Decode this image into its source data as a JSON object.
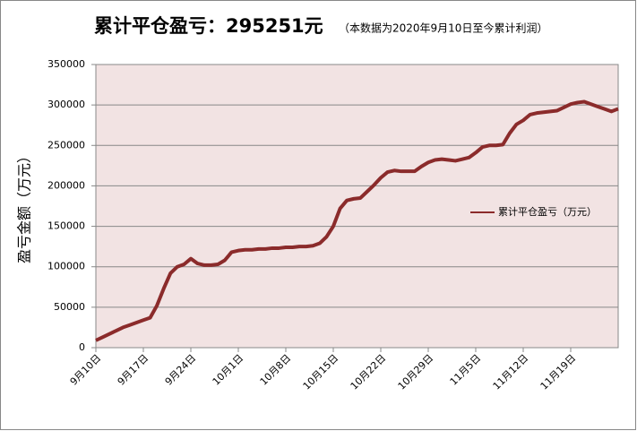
{
  "chart_data": {
    "type": "line",
    "title": "累计平仓盈亏：295251元",
    "subtitle": "（本数据为2020年9月10日至今累计利润）",
    "y_label": "盈亏金额（万元）",
    "categories": [
      "9月10日",
      null,
      null,
      null,
      null,
      null,
      null,
      "9月17日",
      null,
      null,
      null,
      null,
      null,
      null,
      "9月24日",
      null,
      null,
      null,
      null,
      null,
      null,
      "10月1日",
      null,
      null,
      null,
      null,
      null,
      null,
      "10月8日",
      null,
      null,
      null,
      null,
      null,
      null,
      "10月15日",
      null,
      null,
      null,
      null,
      null,
      null,
      "10月22日",
      null,
      null,
      null,
      null,
      null,
      null,
      "10月29日",
      null,
      null,
      null,
      null,
      null,
      null,
      "11月5日",
      null,
      null,
      null,
      null,
      null,
      null,
      "11月12日",
      null,
      null,
      null,
      null,
      null,
      null,
      "11月19日",
      null,
      null,
      null,
      null,
      null,
      null,
      null
    ],
    "series": [
      {
        "name": "累计平仓盈亏（万元）",
        "color": "#8b2b2b",
        "values": [
          9000,
          13000,
          17000,
          21000,
          25000,
          28000,
          31000,
          34000,
          37000,
          52000,
          73000,
          92000,
          100000,
          103000,
          110000,
          104000,
          102000,
          102000,
          103000,
          108000,
          118000,
          120000,
          121000,
          121000,
          122000,
          122000,
          123000,
          123000,
          124000,
          124000,
          125000,
          125000,
          126000,
          129000,
          137000,
          150000,
          172000,
          182000,
          184000,
          185000,
          193000,
          201000,
          210000,
          217000,
          219000,
          218000,
          218000,
          218000,
          224000,
          229000,
          232000,
          233000,
          232000,
          231000,
          233000,
          235000,
          241000,
          248000,
          250000,
          250000,
          251000,
          265000,
          276000,
          281000,
          288000,
          290000,
          291000,
          292000,
          293000,
          297000,
          301000,
          303000,
          304000,
          301000,
          298000,
          295000,
          292000,
          295251
        ]
      }
    ],
    "ylim": [
      0,
      350000
    ],
    "yticks": [
      0,
      50000,
      100000,
      150000,
      200000,
      250000,
      300000,
      350000
    ],
    "grid": true,
    "legend": "right",
    "plot_background": "#f2e3e3"
  }
}
